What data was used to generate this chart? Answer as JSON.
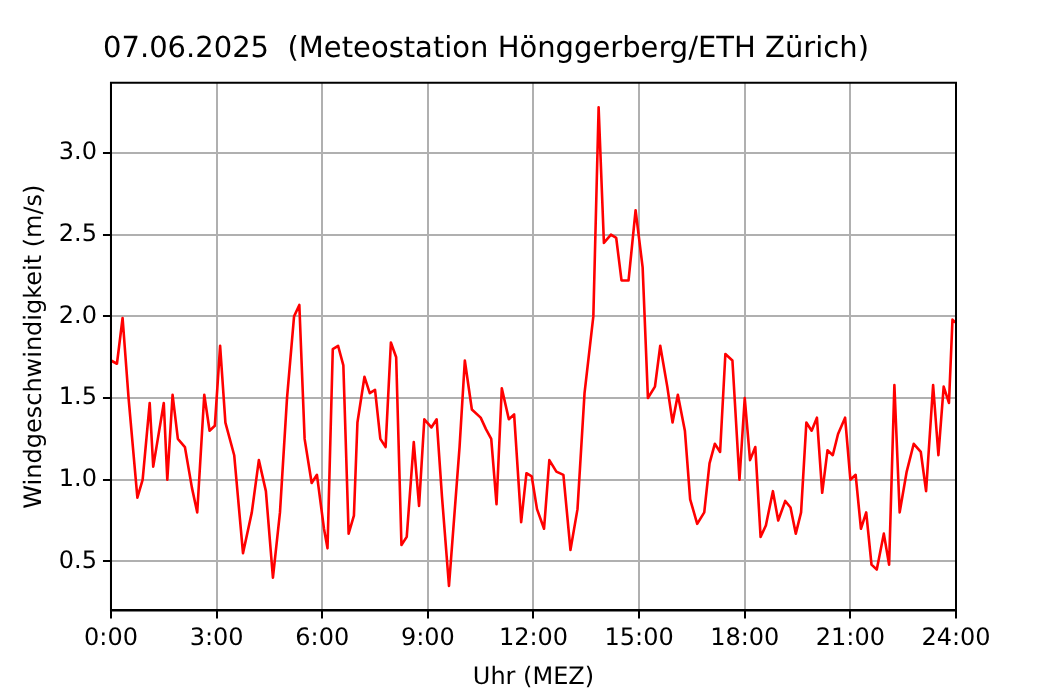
{
  "chart_data": {
    "type": "line",
    "title": "07.06.2025  (Meteostation Hönggerberg/ETH Zürich)",
    "xlabel": "Uhr (MEZ)",
    "ylabel": "Windgeschwindigkeit (m/s)",
    "x": [
      0,
      0.17,
      0.33,
      0.5,
      0.75,
      0.9,
      1.1,
      1.2,
      1.5,
      1.6,
      1.75,
      1.9,
      2.1,
      2.3,
      2.45,
      2.65,
      2.8,
      2.95,
      3.1,
      3.25,
      3.5,
      3.75,
      4,
      4.2,
      4.4,
      4.6,
      4.8,
      5,
      5.2,
      5.35,
      5.5,
      5.7,
      5.85,
      6.05,
      6.15,
      6.3,
      6.45,
      6.6,
      6.75,
      6.9,
      7,
      7.2,
      7.35,
      7.5,
      7.65,
      7.8,
      7.95,
      8.1,
      8.25,
      8.4,
      8.6,
      8.75,
      8.9,
      9.1,
      9.25,
      9.4,
      9.6,
      9.9,
      10.05,
      10.25,
      10.5,
      10.65,
      10.8,
      10.95,
      11.1,
      11.3,
      11.45,
      11.65,
      11.8,
      11.95,
      12.1,
      12.3,
      12.45,
      12.65,
      12.85,
      13.05,
      13.25,
      13.45,
      13.7,
      13.85,
      14,
      14.2,
      14.35,
      14.5,
      14.7,
      14.9,
      15.1,
      15.25,
      15.45,
      15.6,
      15.8,
      15.95,
      16.1,
      16.3,
      16.45,
      16.65,
      16.85,
      17,
      17.15,
      17.3,
      17.45,
      17.65,
      17.85,
      18,
      18.15,
      18.3,
      18.45,
      18.6,
      18.8,
      18.95,
      19.15,
      19.3,
      19.45,
      19.6,
      19.75,
      19.9,
      20.05,
      20.2,
      20.35,
      20.5,
      20.65,
      20.85,
      21,
      21.15,
      21.3,
      21.45,
      21.6,
      21.75,
      21.95,
      22.1,
      22.25,
      22.4,
      22.6,
      22.8,
      23,
      23.15,
      23.35,
      23.5,
      23.65,
      23.8,
      23.9,
      24
    ],
    "series": [
      {
        "color": "#ff0000",
        "values": [
          1.73,
          1.71,
          1.99,
          1.5,
          0.89,
          1.0,
          1.47,
          1.08,
          1.47,
          1.0,
          1.52,
          1.25,
          1.2,
          0.95,
          0.8,
          1.52,
          1.3,
          1.33,
          1.82,
          1.35,
          1.15,
          0.55,
          0.8,
          1.12,
          0.93,
          0.4,
          0.8,
          1.5,
          2.0,
          2.07,
          1.25,
          0.98,
          1.03,
          0.7,
          0.58,
          1.8,
          1.82,
          1.7,
          0.67,
          0.78,
          1.35,
          1.63,
          1.53,
          1.55,
          1.25,
          1.2,
          1.84,
          1.75,
          0.6,
          0.65,
          1.23,
          0.84,
          1.37,
          1.32,
          1.37,
          0.9,
          0.35,
          1.2,
          1.73,
          1.43,
          1.38,
          1.31,
          1.25,
          0.85,
          1.56,
          1.37,
          1.4,
          0.74,
          1.04,
          1.02,
          0.82,
          0.7,
          1.12,
          1.05,
          1.03,
          0.57,
          0.82,
          1.53,
          2.0,
          3.28,
          2.45,
          2.5,
          2.48,
          2.22,
          2.22,
          2.65,
          2.3,
          1.5,
          1.57,
          1.82,
          1.57,
          1.35,
          1.52,
          1.3,
          0.88,
          0.73,
          0.8,
          1.1,
          1.22,
          1.17,
          1.77,
          1.73,
          1.0,
          1.5,
          1.12,
          1.2,
          0.65,
          0.72,
          0.93,
          0.75,
          0.87,
          0.83,
          0.67,
          0.8,
          1.35,
          1.3,
          1.38,
          0.92,
          1.18,
          1.15,
          1.28,
          1.38,
          1.0,
          1.03,
          0.7,
          0.8,
          0.48,
          0.45,
          0.67,
          0.48,
          1.58,
          0.8,
          1.05,
          1.22,
          1.17,
          0.93,
          1.58,
          1.15,
          1.57,
          1.47,
          1.98,
          1.96
        ]
      }
    ],
    "xlim": [
      0,
      24
    ],
    "xticks": [
      {
        "value": 0,
        "label": "0:00"
      },
      {
        "value": 3,
        "label": "3:00"
      },
      {
        "value": 6,
        "label": "6:00"
      },
      {
        "value": 9,
        "label": "9:00"
      },
      {
        "value": 12,
        "label": "12:00"
      },
      {
        "value": 15,
        "label": "15:00"
      },
      {
        "value": 18,
        "label": "18:00"
      },
      {
        "value": 21,
        "label": "21:00"
      },
      {
        "value": 24,
        "label": "24:00"
      }
    ],
    "ylim": [
      0.2,
      3.43
    ],
    "yticks": [
      {
        "value": 0.5,
        "label": "0.5"
      },
      {
        "value": 1,
        "label": "1.0"
      },
      {
        "value": 1.5,
        "label": "1.5"
      },
      {
        "value": 2,
        "label": "2.0"
      },
      {
        "value": 2.5,
        "label": "2.5"
      },
      {
        "value": 3,
        "label": "3.0"
      }
    ],
    "grid": true,
    "legend": false,
    "marker": "none",
    "line_style": "solid"
  }
}
